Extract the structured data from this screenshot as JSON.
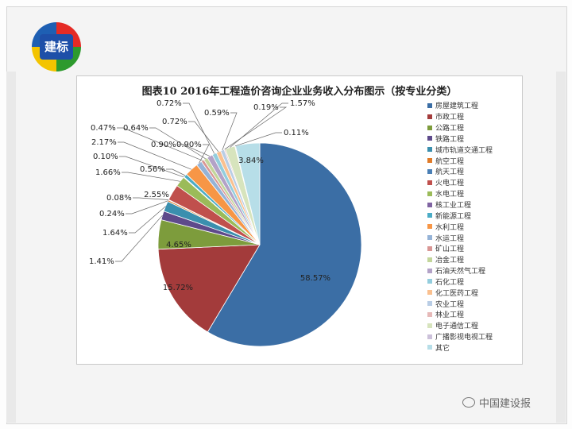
{
  "logo": {
    "text": "建标"
  },
  "watermark": {
    "text": "中国建设报",
    "icon": "wechat-icon"
  },
  "chart_data": {
    "type": "pie",
    "title": "图表10   2016年工程造价咨询企业业务收入分布图示（按专业分类）",
    "legend_position": "right",
    "slices": [
      {
        "name": "房屋建筑工程",
        "value": 58.57,
        "label": "58.57%",
        "color": "#3b6ea5"
      },
      {
        "name": "市政工程",
        "value": 15.72,
        "label": "15.72%",
        "color": "#a33b3b"
      },
      {
        "name": "公路工程",
        "value": 4.65,
        "label": "4.65%",
        "color": "#7d9c3c"
      },
      {
        "name": "铁路工程",
        "value": 1.41,
        "label": "1.41%",
        "color": "#5e4a8b"
      },
      {
        "name": "城市轨道交通工程",
        "value": 1.64,
        "label": "1.64%",
        "color": "#3b8fae"
      },
      {
        "name": "航空工程",
        "value": 0.24,
        "label": "0.24%",
        "color": "#e07b29"
      },
      {
        "name": "航天工程",
        "value": 0.08,
        "label": "0.08%",
        "color": "#4a7fb5"
      },
      {
        "name": "火电工程",
        "value": 2.55,
        "label": "2.55%",
        "color": "#c0504d"
      },
      {
        "name": "水电工程",
        "value": 1.66,
        "label": "1.66%",
        "color": "#9bbb59"
      },
      {
        "name": "核工业工程",
        "value": 0.1,
        "label": "0.10%",
        "color": "#8064a2"
      },
      {
        "name": "新能源工程",
        "value": 0.56,
        "label": "0.56%",
        "color": "#4bacc6"
      },
      {
        "name": "水利工程",
        "value": 2.17,
        "label": "2.17%",
        "color": "#f79646"
      },
      {
        "name": "水运工程",
        "value": 0.9,
        "label": "0.90%",
        "color": "#95b3d7"
      },
      {
        "name": "矿山工程",
        "value": 0.47,
        "label": "0.47%",
        "color": "#d99694"
      },
      {
        "name": "冶金工程",
        "value": 0.64,
        "label": "0.64%",
        "color": "#c3d69b"
      },
      {
        "name": "石油天然气工程",
        "value": 0.9,
        "label": "0.90%",
        "color": "#b3a2c7"
      },
      {
        "name": "石化工程",
        "value": 0.72,
        "label": "0.72%",
        "color": "#93cddd"
      },
      {
        "name": "化工医药工程",
        "value": 0.72,
        "label": "0.72%",
        "color": "#fac08f"
      },
      {
        "name": "农业工程",
        "value": 0.59,
        "label": "0.59%",
        "color": "#b9cde5"
      },
      {
        "name": "林业工程",
        "value": 0.19,
        "label": "0.19%",
        "color": "#e6b9b8"
      },
      {
        "name": "电子通信工程",
        "value": 1.57,
        "label": "1.57%",
        "color": "#d7e4bd"
      },
      {
        "name": "广播影视电视工程",
        "value": 0.11,
        "label": "0.11%",
        "color": "#ccc1da"
      },
      {
        "name": "其它",
        "value": 3.84,
        "label": "3.84%",
        "color": "#b7dee8"
      }
    ]
  }
}
